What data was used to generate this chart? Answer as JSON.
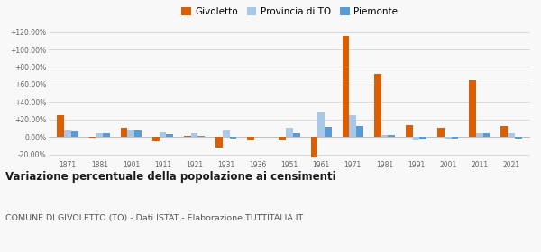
{
  "years": [
    1871,
    1881,
    1901,
    1911,
    1921,
    1931,
    1936,
    1951,
    1961,
    1971,
    1981,
    1991,
    2001,
    2011,
    2021
  ],
  "givoletto": [
    25.0,
    -1.0,
    10.0,
    -5.0,
    1.5,
    -12.0,
    -3.5,
    -4.0,
    -24.0,
    116.0,
    72.0,
    14.0,
    10.0,
    65.0,
    12.0
  ],
  "provincia_to": [
    7.0,
    4.5,
    8.0,
    5.0,
    4.0,
    7.0,
    0.5,
    10.0,
    28.0,
    25.0,
    2.0,
    -3.5,
    -2.0,
    4.5,
    4.5
  ],
  "piemonte": [
    6.0,
    4.0,
    7.0,
    3.5,
    1.5,
    -1.5,
    0.5,
    4.5,
    11.0,
    13.0,
    2.0,
    -3.0,
    -2.0,
    4.0,
    -2.0
  ],
  "color_givoletto": "#d95f02",
  "color_provincia": "#a8c8e8",
  "color_piemonte": "#5b9bd5",
  "title": "Variazione percentuale della popolazione ai censimenti",
  "subtitle": "COMUNE DI GIVOLETTO (TO) - Dati ISTAT - Elaborazione TUTTITALIA.IT",
  "ylim": [
    -25,
    125
  ],
  "yticks": [
    -20,
    0,
    20,
    40,
    60,
    80,
    100,
    120
  ],
  "ytick_labels": [
    "-20.00%",
    "0.00%",
    "+20.00%",
    "+40.00%",
    "+60.00%",
    "+80.00%",
    "+100.00%",
    "+120.00%"
  ],
  "bg_color": "#f8f8f8",
  "grid_color": "#cccccc"
}
